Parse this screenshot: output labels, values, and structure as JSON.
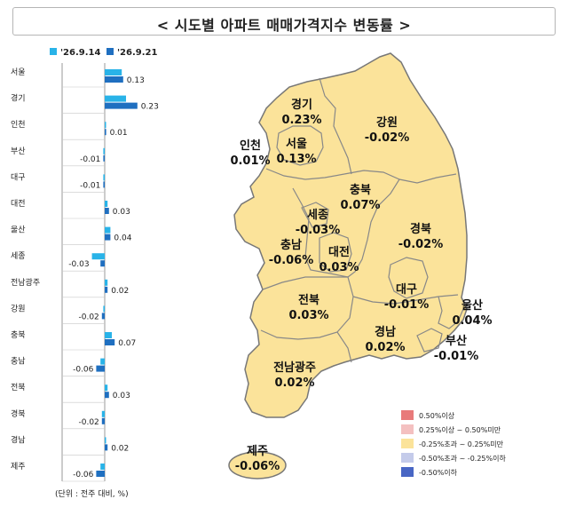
{
  "title": "< 시도별 아파트 매매가격지수 변동률 >",
  "colors": {
    "prev": "#29b3e8",
    "curr": "#1f6fc0",
    "map_fill": "#fbe39a",
    "map_stroke": "#777777",
    "legend": [
      "#e87a7a",
      "#f4c0c0",
      "#fbe39a",
      "#c4cbea",
      "#4866c4"
    ]
  },
  "chart_data": {
    "type": "bar",
    "orientation": "horizontal",
    "categories": [
      "서울",
      "경기",
      "인천",
      "부산",
      "대구",
      "대전",
      "울산",
      "세종",
      "전남광주",
      "강원",
      "충북",
      "충남",
      "전북",
      "경북",
      "경남",
      "제주"
    ],
    "series": [
      {
        "name": "'26.9.14",
        "values": [
          0.12,
          0.15,
          0.0,
          -0.01,
          -0.01,
          0.02,
          0.04,
          -0.09,
          0.02,
          -0.01,
          0.05,
          -0.03,
          0.02,
          -0.02,
          0.0,
          -0.03
        ]
      },
      {
        "name": "'26.9.21",
        "values": [
          0.13,
          0.23,
          0.01,
          -0.01,
          -0.01,
          0.03,
          0.04,
          -0.03,
          0.02,
          -0.02,
          0.07,
          -0.06,
          0.03,
          -0.02,
          0.02,
          -0.06
        ]
      }
    ],
    "data_labels": [
      "0.13",
      "0.23",
      "0.01",
      "-0.01",
      "-0.01",
      "0.03",
      "0.04",
      "-0.03",
      "0.02",
      "-0.02",
      "0.07",
      "-0.06",
      "0.03",
      "-0.02",
      "0.02",
      "-0.06"
    ],
    "unit_note": "(단위 : 전주 대비, %)"
  },
  "map": {
    "regions": [
      {
        "name": "경기",
        "value": "0.23%"
      },
      {
        "name": "강원",
        "value": "-0.02%"
      },
      {
        "name": "인천",
        "value": "0.01%"
      },
      {
        "name": "서울",
        "value": "0.13%"
      },
      {
        "name": "충북",
        "value": "0.07%"
      },
      {
        "name": "세종",
        "value": "-0.03%"
      },
      {
        "name": "충남",
        "value": "-0.06%"
      },
      {
        "name": "대전",
        "value": "0.03%"
      },
      {
        "name": "경북",
        "value": "-0.02%"
      },
      {
        "name": "대구",
        "value": "-0.01%"
      },
      {
        "name": "전북",
        "value": "0.03%"
      },
      {
        "name": "울산",
        "value": "0.04%"
      },
      {
        "name": "경남",
        "value": "0.02%"
      },
      {
        "name": "부산",
        "value": "-0.01%"
      },
      {
        "name": "전남광주",
        "value": "0.02%"
      },
      {
        "name": "제주",
        "value": "-0.06%"
      }
    ],
    "legend": [
      "0.50%이상",
      "0.25%이상 ~ 0.50%미만",
      "-0.25%초과 ~ 0.25%미만",
      "-0.50%초과 ~ -0.25%이하",
      "-0.50%이하"
    ]
  }
}
